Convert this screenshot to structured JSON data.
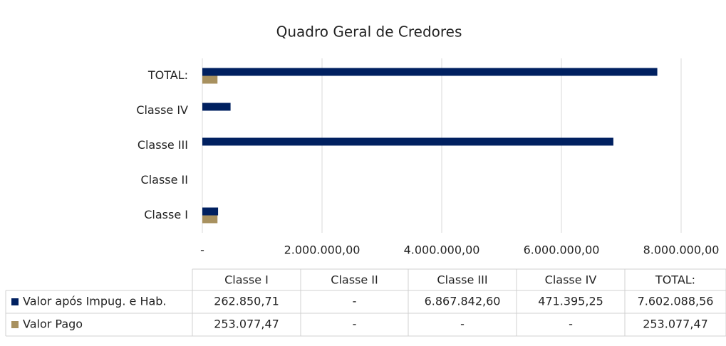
{
  "chart_data": {
    "type": "bar",
    "orientation": "horizontal",
    "title": "Quadro Geral de Credores",
    "categories": [
      "Classe I",
      "Classe II",
      "Classe III",
      "Classe IV",
      "TOTAL:"
    ],
    "series": [
      {
        "name": "Valor após Impug. e Hab.",
        "color": "#002060",
        "values": [
          262850.71,
          0,
          6867842.6,
          471395.25,
          7602088.56
        ],
        "value_labels": [
          "262.850,71",
          "-",
          "6.867.842,60",
          "471.395,25",
          "7.602.088,56"
        ]
      },
      {
        "name": "Valor Pago",
        "color": "#a8915f",
        "values": [
          253077.47,
          0,
          0,
          0,
          253077.47
        ],
        "value_labels": [
          "253.077,47",
          "-",
          "-",
          "-",
          "253.077,47"
        ]
      }
    ],
    "xlim": [
      0,
      8000000
    ],
    "xticks": [
      {
        "value": 0,
        "label": "-"
      },
      {
        "value": 2000000,
        "label": "2.000.000,00"
      },
      {
        "value": 4000000,
        "label": "4.000.000,00"
      },
      {
        "value": 6000000,
        "label": "6.000.000,00"
      },
      {
        "value": 8000000,
        "label": "8.000.000,00"
      }
    ],
    "grid": true,
    "data_table": true
  }
}
